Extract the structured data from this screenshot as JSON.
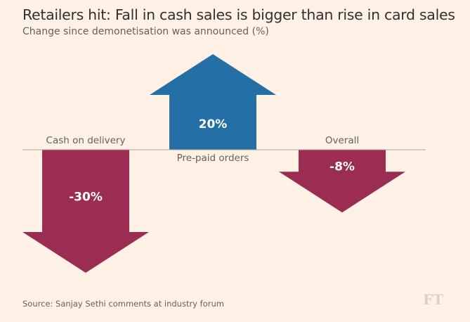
{
  "chart_data": {
    "type": "bar",
    "title": "Retailers hit: Fall in cash sales is bigger than rise in card sales",
    "subtitle": "Change since demonetisation was announced (%)",
    "categories": [
      "Cash on delivery",
      "Pre-paid orders",
      "Overall"
    ],
    "values": [
      -30,
      20,
      -8
    ],
    "value_labels": [
      "-30%",
      "20%",
      "-8%"
    ],
    "colors": {
      "negative": "#9a2d51",
      "positive": "#2470a6",
      "baseline": "#a8a29c"
    },
    "source": "Source: Sanjay Sethi comments at industry forum",
    "logo": "FT"
  }
}
